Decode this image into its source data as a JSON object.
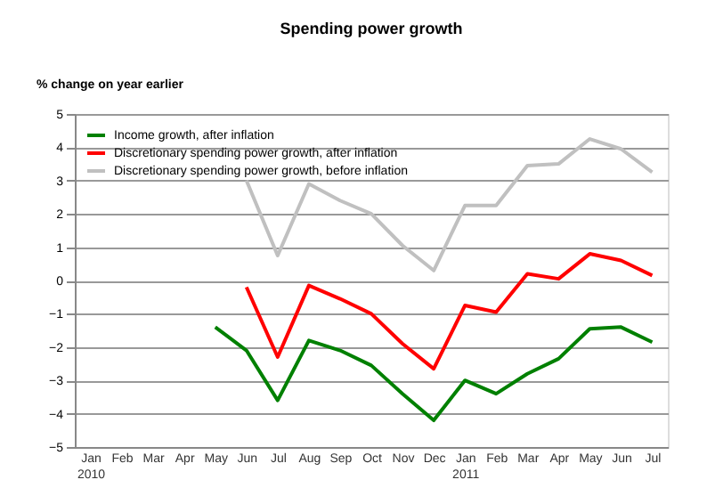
{
  "chart_data": {
    "type": "line",
    "title": "Spending power growth",
    "ylabel": "% change on year earlier",
    "categories": [
      "Jan 2010",
      "Feb",
      "Mar",
      "Apr",
      "May",
      "Jun",
      "Jul",
      "Aug",
      "Sep",
      "Oct",
      "Nov",
      "Dec",
      "Jan 2011",
      "Feb",
      "Mar",
      "Apr",
      "May",
      "Jun",
      "Jul"
    ],
    "series": [
      {
        "name": "Income growth, after inflation",
        "color": "#008000",
        "values": [
          null,
          null,
          null,
          null,
          -1.4,
          -2.1,
          -3.6,
          -1.8,
          -2.1,
          -2.55,
          -3.4,
          -4.2,
          -3.0,
          -3.4,
          -2.8,
          -2.35,
          -1.45,
          -1.4,
          -1.85
        ]
      },
      {
        "name": "Discretionary spending power growth, after inflation",
        "color": "#ff0000",
        "values": [
          null,
          null,
          null,
          null,
          null,
          -0.2,
          -2.3,
          -0.15,
          -0.55,
          -1.0,
          -1.9,
          -2.65,
          -0.75,
          -0.95,
          0.2,
          0.05,
          0.8,
          0.6,
          0.15
        ]
      },
      {
        "name": "Discretionary spending power growth, before inflation",
        "color": "#c0c0c0",
        "values": [
          null,
          null,
          null,
          null,
          null,
          3.0,
          0.75,
          2.9,
          2.4,
          2.0,
          1.05,
          0.3,
          2.25,
          2.25,
          3.45,
          3.5,
          4.25,
          3.95,
          3.25
        ]
      }
    ],
    "ylim": [
      -5,
      5
    ],
    "yticks": [
      -5,
      -4,
      -3,
      -2,
      -1,
      0,
      1,
      2,
      3,
      4,
      5
    ],
    "grid": "y",
    "legend": "top left",
    "marker": "none",
    "line_style": "solid"
  }
}
